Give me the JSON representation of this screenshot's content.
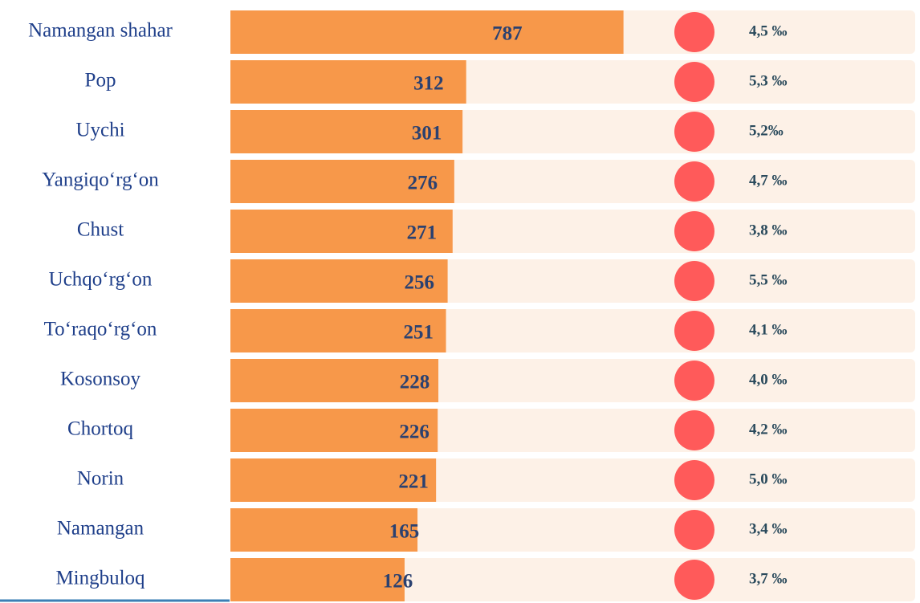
{
  "chart_data": {
    "type": "bar",
    "orientation": "horizontal",
    "categories": [
      "Namangan shahar",
      "Pop",
      "Uychi",
      "Yangiqo‘rg‘on",
      "Chust",
      "Uchqo‘rg‘on",
      "To‘raqo‘rg‘on",
      "Kosonsoy",
      "Chortoq",
      "Norin",
      "Namangan",
      "Mingbuloq"
    ],
    "series": [
      {
        "color": "#f7984a",
        "values": [
          787,
          312,
          301,
          276,
          271,
          256,
          251,
          228,
          226,
          221,
          165,
          126
        ]
      },
      {
        "color": "#ff5a5a",
        "values": [
          4.5,
          5.3,
          5.2,
          4.7,
          3.8,
          5.5,
          4.1,
          4.0,
          4.2,
          5.0,
          3.4,
          3.7
        ],
        "value_labels": [
          "4,5 ‰",
          "5,3 ‰",
          "5,2‰",
          "4,7 ‰",
          "3,8 ‰",
          "5,5 ‰",
          "4,1 ‰",
          "4,0 ‰",
          "4,2 ‰",
          "5,0 ‰",
          "3,4 ‰",
          "3,7 ‰"
        ]
      }
    ],
    "xlim": [
      -400,
      800
    ]
  }
}
